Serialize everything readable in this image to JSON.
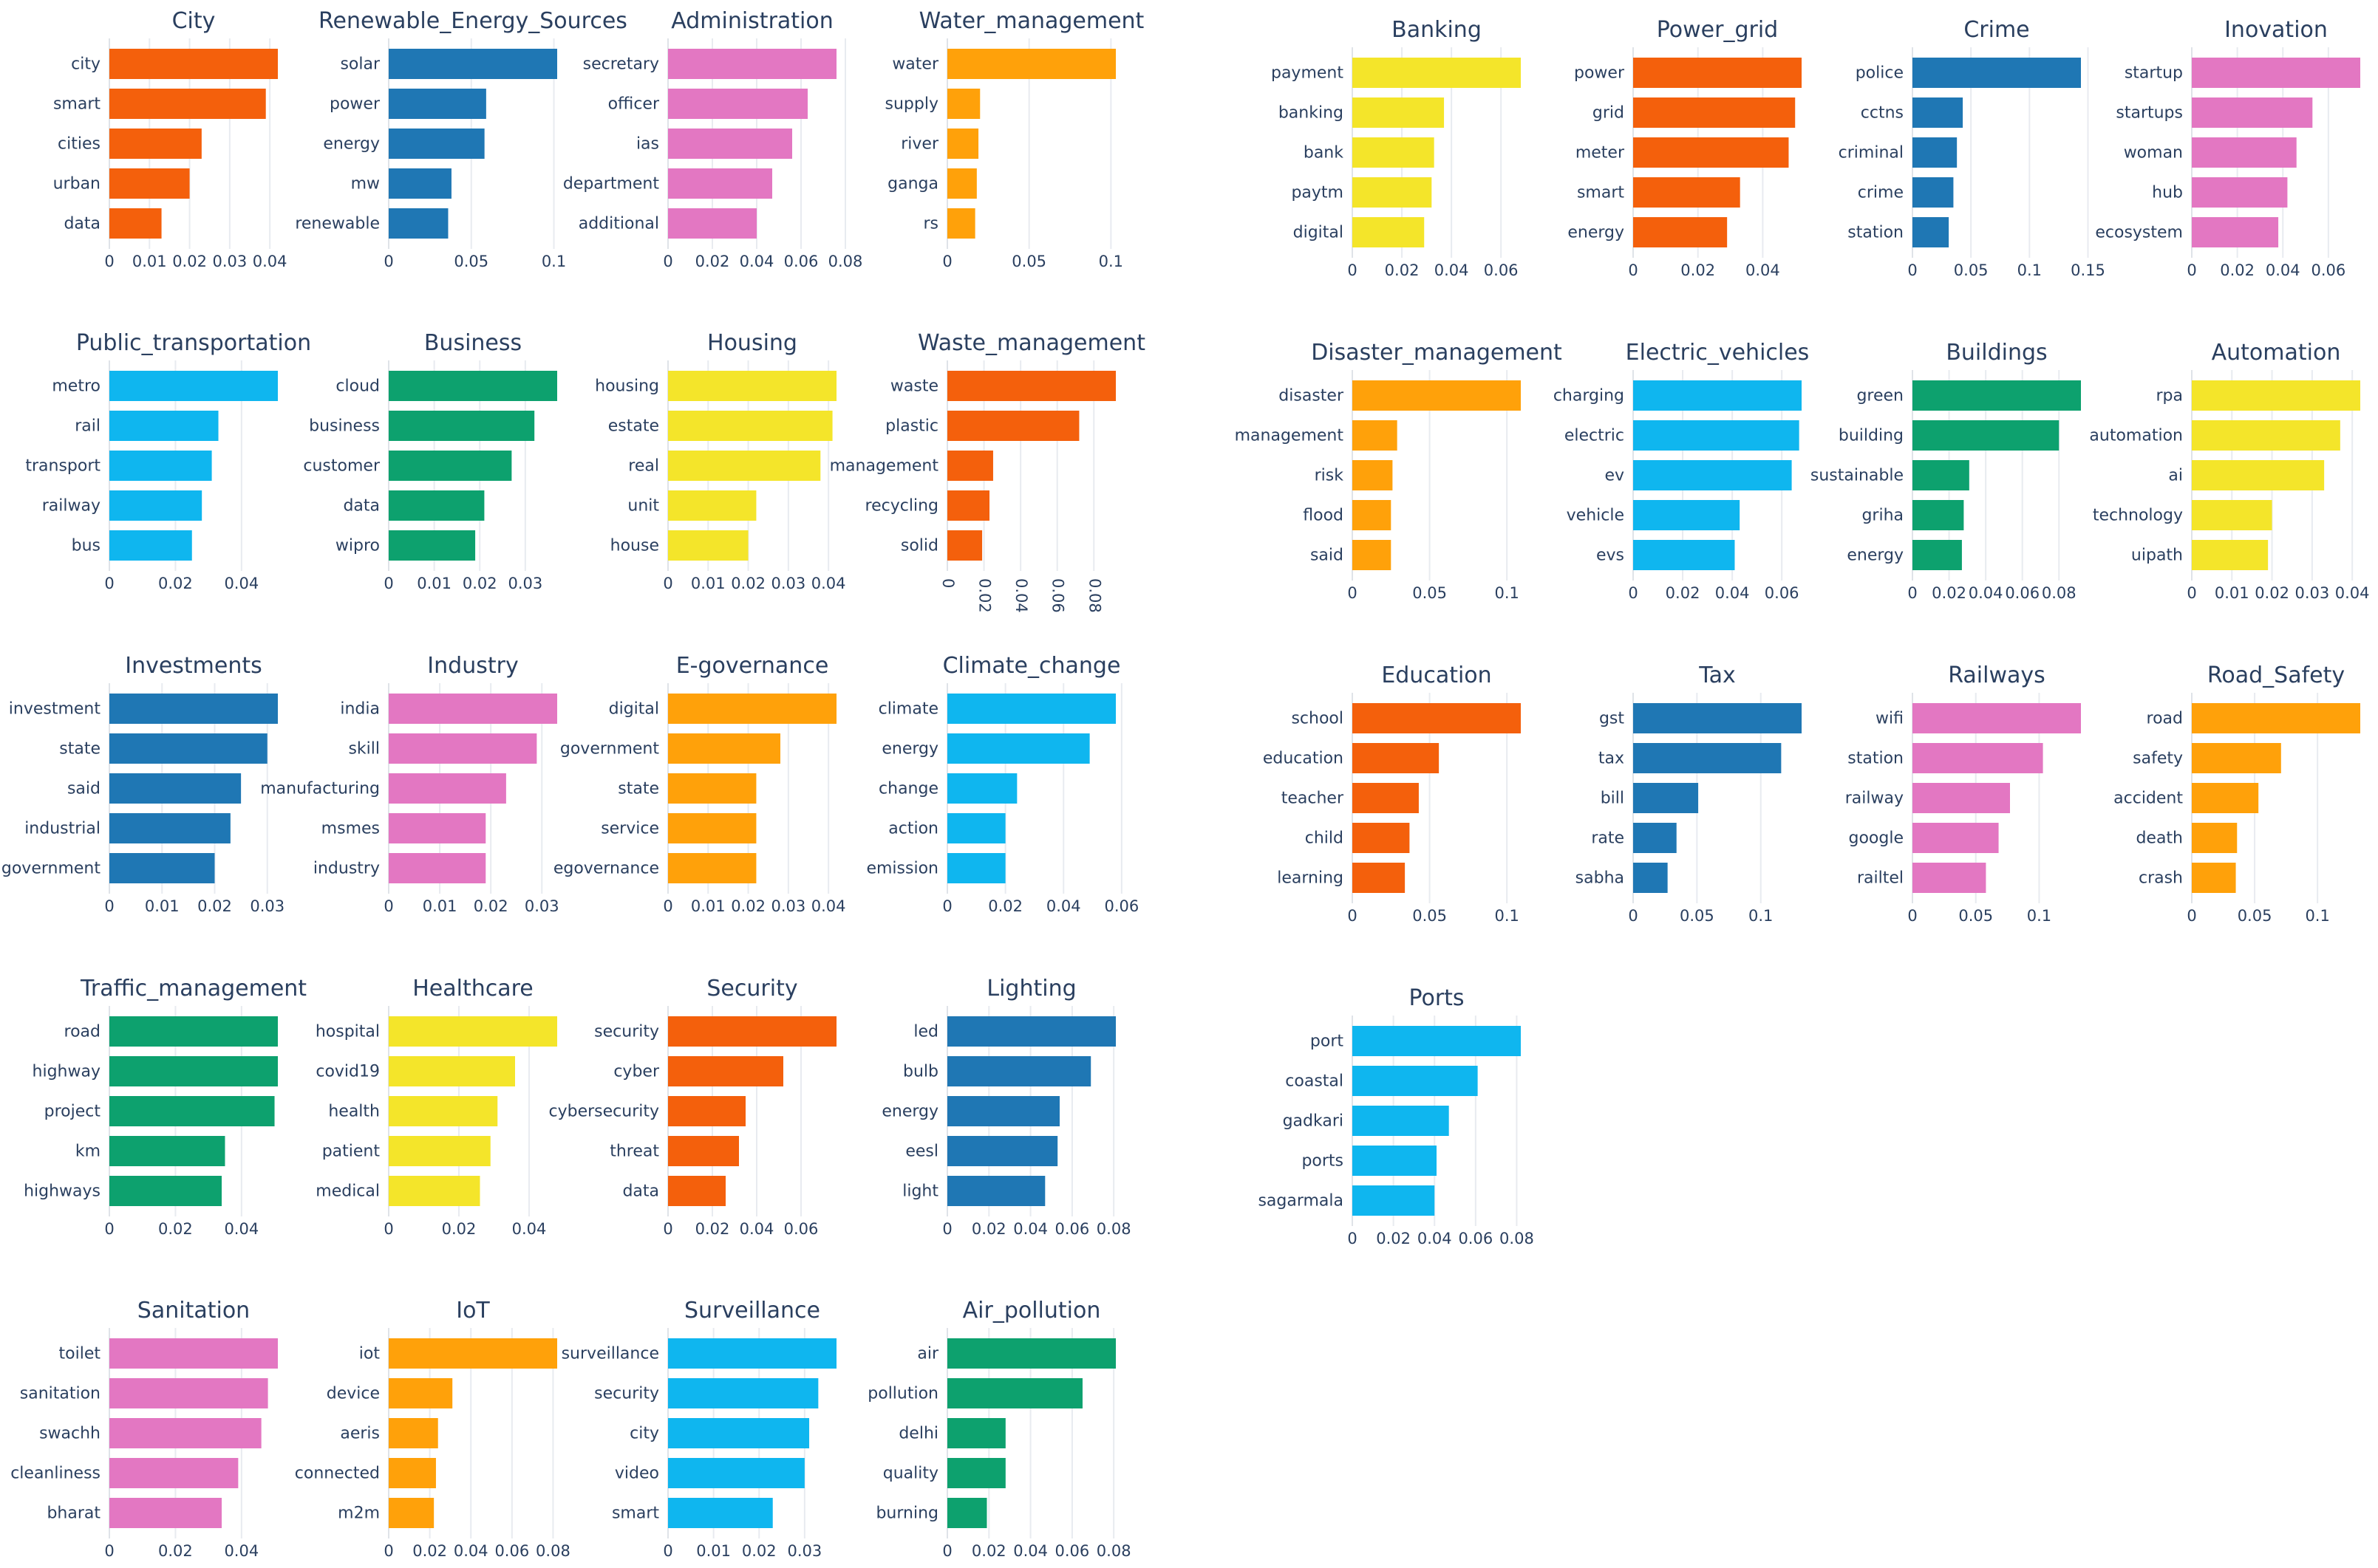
{
  "chart_data": [
    {
      "type": "bar",
      "orientation": "h",
      "title": "City",
      "color": "#f4600c",
      "categories": [
        "city",
        "smart",
        "cities",
        "urban",
        "data"
      ],
      "values": [
        0.042,
        0.039,
        0.023,
        0.02,
        0.013
      ],
      "xlim": [
        0,
        0.042
      ],
      "xticks": [
        "0",
        "0.01",
        "0.02",
        "0.03",
        "0.04"
      ]
    },
    {
      "type": "bar",
      "orientation": "h",
      "title": "Renewable_Energy_Sources",
      "color": "#1f77b4",
      "categories": [
        "solar",
        "power",
        "energy",
        "mw",
        "renewable"
      ],
      "values": [
        0.102,
        0.059,
        0.058,
        0.038,
        0.036
      ],
      "xlim": [
        0,
        0.102
      ],
      "xticks": [
        "0",
        "0.05",
        "0.1"
      ]
    },
    {
      "type": "bar",
      "orientation": "h",
      "title": "Administration",
      "color": "#e377c2",
      "categories": [
        "secretary",
        "officer",
        "ias",
        "department",
        "additional"
      ],
      "values": [
        0.076,
        0.063,
        0.056,
        0.047,
        0.04
      ],
      "xlim": [
        0,
        0.076
      ],
      "xticks": [
        "0",
        "0.02",
        "0.04",
        "0.06",
        "0.08"
      ]
    },
    {
      "type": "bar",
      "orientation": "h",
      "title": "Water_management",
      "color": "#ffa10a",
      "categories": [
        "water",
        "supply",
        "river",
        "ganga",
        "rs"
      ],
      "values": [
        0.103,
        0.02,
        0.019,
        0.018,
        0.017
      ],
      "xlim": [
        0,
        0.103
      ],
      "xticks": [
        "0",
        "0.05",
        "0.1"
      ]
    },
    {
      "type": "bar",
      "orientation": "h",
      "title": "Banking",
      "color": "#f4e52a",
      "categories": [
        "payment",
        "banking",
        "bank",
        "paytm",
        "digital"
      ],
      "values": [
        0.068,
        0.037,
        0.033,
        0.032,
        0.029
      ],
      "xlim": [
        0,
        0.068
      ],
      "xticks": [
        "0",
        "0.02",
        "0.04",
        "0.06"
      ]
    },
    {
      "type": "bar",
      "orientation": "h",
      "title": "Power_grid",
      "color": "#f4600c",
      "categories": [
        "power",
        "grid",
        "meter",
        "smart",
        "energy"
      ],
      "values": [
        0.052,
        0.05,
        0.048,
        0.033,
        0.029
      ],
      "xlim": [
        0,
        0.052
      ],
      "xticks": [
        "0",
        "0.02",
        "0.04"
      ]
    },
    {
      "type": "bar",
      "orientation": "h",
      "title": "Crime",
      "color": "#1f77b4",
      "categories": [
        "police",
        "cctns",
        "criminal",
        "crime",
        "station"
      ],
      "values": [
        0.144,
        0.043,
        0.038,
        0.035,
        0.031
      ],
      "xlim": [
        0,
        0.144
      ],
      "xticks": [
        "0",
        "0.05",
        "0.1",
        "0.15"
      ]
    },
    {
      "type": "bar",
      "orientation": "h",
      "title": "Inovation",
      "color": "#e377c2",
      "categories": [
        "startup",
        "startups",
        "woman",
        "hub",
        "ecosystem"
      ],
      "values": [
        0.074,
        0.053,
        0.046,
        0.042,
        0.038
      ],
      "xlim": [
        0,
        0.074
      ],
      "xticks": [
        "0",
        "0.02",
        "0.04",
        "0.06"
      ]
    },
    {
      "type": "bar",
      "orientation": "h",
      "title": "Public_transportation",
      "color": "#0fb6ef",
      "categories": [
        "metro",
        "rail",
        "transport",
        "railway",
        "bus"
      ],
      "values": [
        0.051,
        0.033,
        0.031,
        0.028,
        0.025
      ],
      "xlim": [
        0,
        0.051
      ],
      "xticks": [
        "0",
        "0.02",
        "0.04"
      ]
    },
    {
      "type": "bar",
      "orientation": "h",
      "title": "Business",
      "color": "#0da16e",
      "categories": [
        "cloud",
        "business",
        "customer",
        "data",
        "wipro"
      ],
      "values": [
        0.037,
        0.032,
        0.027,
        0.021,
        0.019
      ],
      "xlim": [
        0,
        0.037
      ],
      "xticks": [
        "0",
        "0.01",
        "0.02",
        "0.03"
      ]
    },
    {
      "type": "bar",
      "orientation": "h",
      "title": "Housing",
      "color": "#f4e52a",
      "categories": [
        "housing",
        "estate",
        "real",
        "unit",
        "house"
      ],
      "values": [
        0.042,
        0.041,
        0.038,
        0.022,
        0.02
      ],
      "xlim": [
        0,
        0.042
      ],
      "xticks": [
        "0",
        "0.01",
        "0.02",
        "0.03",
        "0.04"
      ]
    },
    {
      "type": "bar",
      "orientation": "h",
      "title": "Waste_management",
      "color": "#f4600c",
      "categories": [
        "waste",
        "plastic",
        "management",
        "recycling",
        "solid"
      ],
      "values": [
        0.092,
        0.072,
        0.025,
        0.023,
        0.019
      ],
      "xlim": [
        0,
        0.092
      ],
      "xticks": [
        "0",
        "0.02",
        "0.04",
        "0.06",
        "0.08"
      ]
    },
    {
      "type": "bar",
      "orientation": "h",
      "title": "Disaster_management",
      "color": "#ffa10a",
      "categories": [
        "disaster",
        "management",
        "risk",
        "flood",
        "said"
      ],
      "values": [
        0.109,
        0.029,
        0.026,
        0.025,
        0.025
      ],
      "xlim": [
        0,
        0.109
      ],
      "xticks": [
        "0",
        "0.05",
        "0.1"
      ]
    },
    {
      "type": "bar",
      "orientation": "h",
      "title": "Electric_vehicles",
      "color": "#0fb6ef",
      "categories": [
        "charging",
        "electric",
        "ev",
        "vehicle",
        "evs"
      ],
      "values": [
        0.068,
        0.067,
        0.064,
        0.043,
        0.041
      ],
      "xlim": [
        0,
        0.068
      ],
      "xticks": [
        "0",
        "0.02",
        "0.04",
        "0.06"
      ]
    },
    {
      "type": "bar",
      "orientation": "h",
      "title": "Buildings",
      "color": "#0da16e",
      "categories": [
        "green",
        "building",
        "sustainable",
        "griha",
        "energy"
      ],
      "values": [
        0.092,
        0.08,
        0.031,
        0.028,
        0.027
      ],
      "xlim": [
        0,
        0.092
      ],
      "xticks": [
        "0",
        "0.02",
        "0.04",
        "0.06",
        "0.08"
      ]
    },
    {
      "type": "bar",
      "orientation": "h",
      "title": "Automation",
      "color": "#f4e52a",
      "categories": [
        "rpa",
        "automation",
        "ai",
        "technology",
        "uipath"
      ],
      "values": [
        0.042,
        0.037,
        0.033,
        0.02,
        0.019
      ],
      "xlim": [
        0,
        0.042
      ],
      "xticks": [
        "0",
        "0.01",
        "0.02",
        "0.03",
        "0.04"
      ]
    },
    {
      "type": "bar",
      "orientation": "h",
      "title": "Investments",
      "color": "#1f77b4",
      "categories": [
        "investment",
        "state",
        "said",
        "industrial",
        "government"
      ],
      "values": [
        0.032,
        0.03,
        0.025,
        0.023,
        0.02
      ],
      "xlim": [
        0,
        0.032
      ],
      "xticks": [
        "0",
        "0.01",
        "0.02",
        "0.03"
      ]
    },
    {
      "type": "bar",
      "orientation": "h",
      "title": "Industry",
      "color": "#e377c2",
      "categories": [
        "india",
        "skill",
        "manufacturing",
        "msmes",
        "industry"
      ],
      "values": [
        0.033,
        0.029,
        0.023,
        0.019,
        0.019
      ],
      "xlim": [
        0,
        0.033
      ],
      "xticks": [
        "0",
        "0.01",
        "0.02",
        "0.03"
      ]
    },
    {
      "type": "bar",
      "orientation": "h",
      "title": "E-governance",
      "color": "#ffa10a",
      "categories": [
        "digital",
        "government",
        "state",
        "service",
        "egovernance"
      ],
      "values": [
        0.042,
        0.028,
        0.022,
        0.022,
        0.022
      ],
      "xlim": [
        0,
        0.042
      ],
      "xticks": [
        "0",
        "0.01",
        "0.02",
        "0.03",
        "0.04"
      ]
    },
    {
      "type": "bar",
      "orientation": "h",
      "title": "Climate_change",
      "color": "#0fb6ef",
      "categories": [
        "climate",
        "energy",
        "change",
        "action",
        "emission"
      ],
      "values": [
        0.058,
        0.049,
        0.024,
        0.02,
        0.02
      ],
      "xlim": [
        0,
        0.058
      ],
      "xticks": [
        "0",
        "0.02",
        "0.04",
        "0.06"
      ]
    },
    {
      "type": "bar",
      "orientation": "h",
      "title": "Education",
      "color": "#f4600c",
      "categories": [
        "school",
        "education",
        "teacher",
        "child",
        "learning"
      ],
      "values": [
        0.109,
        0.056,
        0.043,
        0.037,
        0.034
      ],
      "xlim": [
        0,
        0.109
      ],
      "xticks": [
        "0",
        "0.05",
        "0.1"
      ]
    },
    {
      "type": "bar",
      "orientation": "h",
      "title": "Tax",
      "color": "#1f77b4",
      "categories": [
        "gst",
        "tax",
        "bill",
        "rate",
        "sabha"
      ],
      "values": [
        0.132,
        0.116,
        0.051,
        0.034,
        0.027
      ],
      "xlim": [
        0,
        0.132
      ],
      "xticks": [
        "0",
        "0.05",
        "0.1"
      ]
    },
    {
      "type": "bar",
      "orientation": "h",
      "title": "Railways",
      "color": "#e377c2",
      "categories": [
        "wifi",
        "station",
        "railway",
        "google",
        "railtel"
      ],
      "values": [
        0.133,
        0.103,
        0.077,
        0.068,
        0.058
      ],
      "xlim": [
        0,
        0.133
      ],
      "xticks": [
        "0",
        "0.05",
        "0.1"
      ]
    },
    {
      "type": "bar",
      "orientation": "h",
      "title": "Road_Safety",
      "color": "#ffa10a",
      "categories": [
        "road",
        "safety",
        "accident",
        "death",
        "crash"
      ],
      "values": [
        0.134,
        0.071,
        0.053,
        0.036,
        0.035
      ],
      "xlim": [
        0,
        0.134
      ],
      "xticks": [
        "0",
        "0.05",
        "0.1"
      ]
    },
    {
      "type": "bar",
      "orientation": "h",
      "title": "Traffic_management",
      "color": "#0da16e",
      "categories": [
        "road",
        "highway",
        "project",
        "km",
        "highways"
      ],
      "values": [
        0.051,
        0.051,
        0.05,
        0.035,
        0.034
      ],
      "xlim": [
        0,
        0.051
      ],
      "xticks": [
        "0",
        "0.02",
        "0.04"
      ]
    },
    {
      "type": "bar",
      "orientation": "h",
      "title": "Healthcare",
      "color": "#f4e52a",
      "categories": [
        "hospital",
        "covid19",
        "health",
        "patient",
        "medical"
      ],
      "values": [
        0.048,
        0.036,
        0.031,
        0.029,
        0.026
      ],
      "xlim": [
        0,
        0.048
      ],
      "xticks": [
        "0",
        "0.02",
        "0.04"
      ]
    },
    {
      "type": "bar",
      "orientation": "h",
      "title": "Security",
      "color": "#f4600c",
      "categories": [
        "security",
        "cyber",
        "cybersecurity",
        "threat",
        "data"
      ],
      "values": [
        0.076,
        0.052,
        0.035,
        0.032,
        0.026
      ],
      "xlim": [
        0,
        0.076
      ],
      "xticks": [
        "0",
        "0.02",
        "0.04",
        "0.06"
      ]
    },
    {
      "type": "bar",
      "orientation": "h",
      "title": "Lighting",
      "color": "#1f77b4",
      "categories": [
        "led",
        "bulb",
        "energy",
        "eesl",
        "light"
      ],
      "values": [
        0.081,
        0.069,
        0.054,
        0.053,
        0.047
      ],
      "xlim": [
        0,
        0.081
      ],
      "xticks": [
        "0",
        "0.02",
        "0.04",
        "0.06",
        "0.08"
      ]
    },
    {
      "type": "bar",
      "orientation": "h",
      "title": "Ports",
      "color": "#0fb6ef",
      "categories": [
        "port",
        "coastal",
        "gadkari",
        "ports",
        "sagarmala"
      ],
      "values": [
        0.082,
        0.061,
        0.047,
        0.041,
        0.04
      ],
      "xlim": [
        0,
        0.082
      ],
      "xticks": [
        "0",
        "0.02",
        "0.04",
        "0.06",
        "0.08"
      ]
    },
    {
      "type": "bar",
      "orientation": "h",
      "title": "Sanitation",
      "color": "#e377c2",
      "categories": [
        "toilet",
        "sanitation",
        "swachh",
        "cleanliness",
        "bharat"
      ],
      "values": [
        0.051,
        0.048,
        0.046,
        0.039,
        0.034
      ],
      "xlim": [
        0,
        0.051
      ],
      "xticks": [
        "0",
        "0.02",
        "0.04"
      ]
    },
    {
      "type": "bar",
      "orientation": "h",
      "title": "IoT",
      "color": "#ffa10a",
      "categories": [
        "iot",
        "device",
        "aeris",
        "connected",
        "m2m"
      ],
      "values": [
        0.082,
        0.031,
        0.024,
        0.023,
        0.022
      ],
      "xlim": [
        0,
        0.082
      ],
      "xticks": [
        "0",
        "0.02",
        "0.04",
        "0.06",
        "0.08"
      ]
    },
    {
      "type": "bar",
      "orientation": "h",
      "title": "Surveillance",
      "color": "#0fb6ef",
      "categories": [
        "surveillance",
        "security",
        "city",
        "video",
        "smart"
      ],
      "values": [
        0.037,
        0.033,
        0.031,
        0.03,
        0.023
      ],
      "xlim": [
        0,
        0.037
      ],
      "xticks": [
        "0",
        "0.01",
        "0.02",
        "0.03"
      ]
    },
    {
      "type": "bar",
      "orientation": "h",
      "title": "Air_pollution",
      "color": "#0da16e",
      "categories": [
        "air",
        "pollution",
        "delhi",
        "quality",
        "burning"
      ],
      "values": [
        0.081,
        0.065,
        0.028,
        0.028,
        0.019
      ],
      "xlim": [
        0,
        0.081
      ],
      "xticks": [
        "0",
        "0.02",
        "0.04",
        "0.06",
        "0.08"
      ]
    }
  ]
}
